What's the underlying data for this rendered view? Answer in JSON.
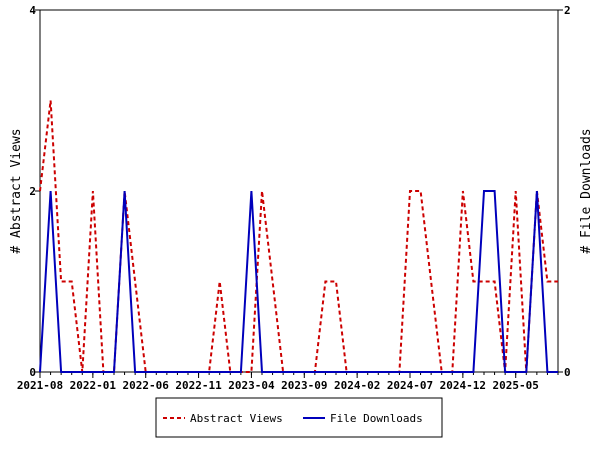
{
  "chart_data": {
    "type": "line",
    "title": "",
    "xlabel": "",
    "x": [
      "2021-08",
      "2021-09",
      "2021-10",
      "2021-11",
      "2021-12",
      "2022-01",
      "2022-02",
      "2022-03",
      "2022-04",
      "2022-05",
      "2022-06",
      "2022-07",
      "2022-08",
      "2022-09",
      "2022-10",
      "2022-11",
      "2022-12",
      "2023-01",
      "2023-02",
      "2023-03",
      "2023-04",
      "2023-05",
      "2023-06",
      "2023-07",
      "2023-08",
      "2023-09",
      "2023-10",
      "2023-11",
      "2023-12",
      "2024-01",
      "2024-02",
      "2024-03",
      "2024-04",
      "2024-05",
      "2024-06",
      "2024-07",
      "2024-08",
      "2024-09",
      "2024-10",
      "2024-11",
      "2024-12",
      "2025-01",
      "2025-02",
      "2025-03",
      "2025-04",
      "2025-05",
      "2025-06",
      "2025-07",
      "2025-08",
      "2025-09"
    ],
    "x_ticks": [
      "2021-08",
      "2022-01",
      "2022-06",
      "2022-11",
      "2023-04",
      "2023-09",
      "2024-02",
      "2024-07",
      "2024-12",
      "2025-05"
    ],
    "x_tick_indices": [
      0,
      5,
      10,
      15,
      20,
      25,
      30,
      35,
      40,
      45
    ],
    "ylabel_left": "# Abstract Views",
    "ylabel_right": "# File Downloads",
    "ylim_left": [
      0,
      4
    ],
    "ylim_right": [
      0,
      2
    ],
    "yticks_left": [
      "0",
      "2",
      "4"
    ],
    "yticks_right": [
      "0",
      "1",
      "2"
    ],
    "series": [
      {
        "name": "Abstract Views",
        "axis": "left",
        "color": "#cc0000",
        "dash": true,
        "values": [
          2,
          3,
          1,
          1,
          0,
          2,
          0,
          0,
          2,
          1,
          0,
          0,
          0,
          0,
          0,
          0,
          0,
          1,
          0,
          0,
          0,
          2,
          1,
          0,
          0,
          0,
          0,
          1,
          1,
          0,
          0,
          0,
          0,
          0,
          0,
          2,
          2,
          1,
          0,
          0,
          2,
          1,
          1,
          1,
          0,
          2,
          0,
          2,
          1,
          1
        ]
      },
      {
        "name": "File Downloads",
        "axis": "right",
        "color": "#0000bb",
        "dash": false,
        "values": [
          0,
          1,
          0,
          0,
          0,
          0,
          0,
          0,
          1,
          0,
          0,
          0,
          0,
          0,
          0,
          0,
          0,
          0,
          0,
          0,
          1,
          0,
          0,
          0,
          0,
          0,
          0,
          0,
          0,
          0,
          0,
          0,
          0,
          0,
          0,
          0,
          0,
          0,
          0,
          0,
          0,
          0,
          1,
          1,
          0,
          0,
          0,
          1,
          0,
          0
        ]
      }
    ],
    "legend": {
      "position": "bottom-center",
      "entries": [
        "Abstract Views",
        "File Downloads"
      ]
    },
    "grid": false
  }
}
